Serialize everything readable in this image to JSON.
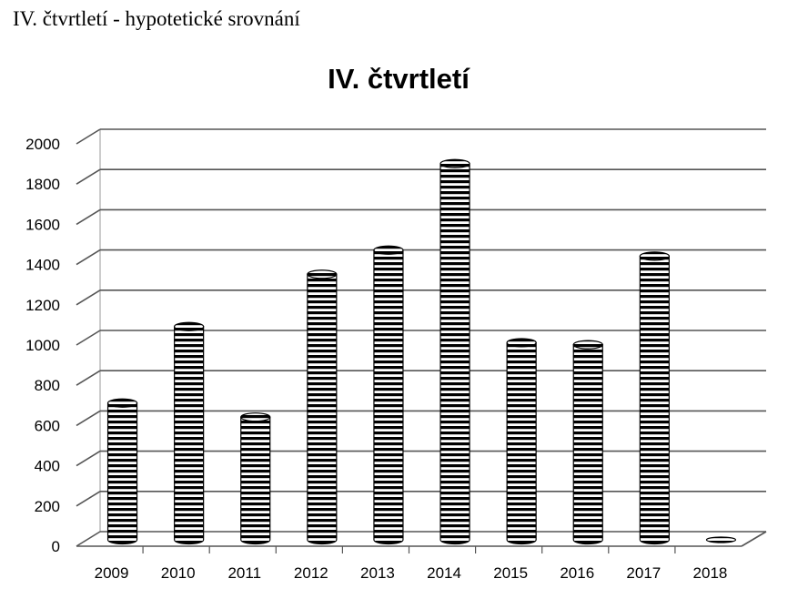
{
  "page": {
    "heading": "IV. čtvrtletí - hypotetické srovnání"
  },
  "chart_data": {
    "type": "bar",
    "style": "3d-cylinder",
    "title": "IV. čtvrtletí",
    "xlabel": "",
    "ylabel": "",
    "categories": [
      "2009",
      "2010",
      "2011",
      "2012",
      "2013",
      "2014",
      "2015",
      "2016",
      "2017",
      "2018"
    ],
    "values": [
      680,
      1060,
      610,
      1320,
      1440,
      1870,
      980,
      970,
      1410,
      0
    ],
    "ylim": [
      0,
      2000
    ],
    "yticks": [
      0,
      200,
      400,
      600,
      800,
      1000,
      1200,
      1400,
      1600,
      1800,
      2000
    ],
    "grid": true,
    "legend": "none",
    "colors": {
      "fill_pattern": "black-white horizontal stripes",
      "gridline": "#555555",
      "text": "#000000"
    }
  }
}
